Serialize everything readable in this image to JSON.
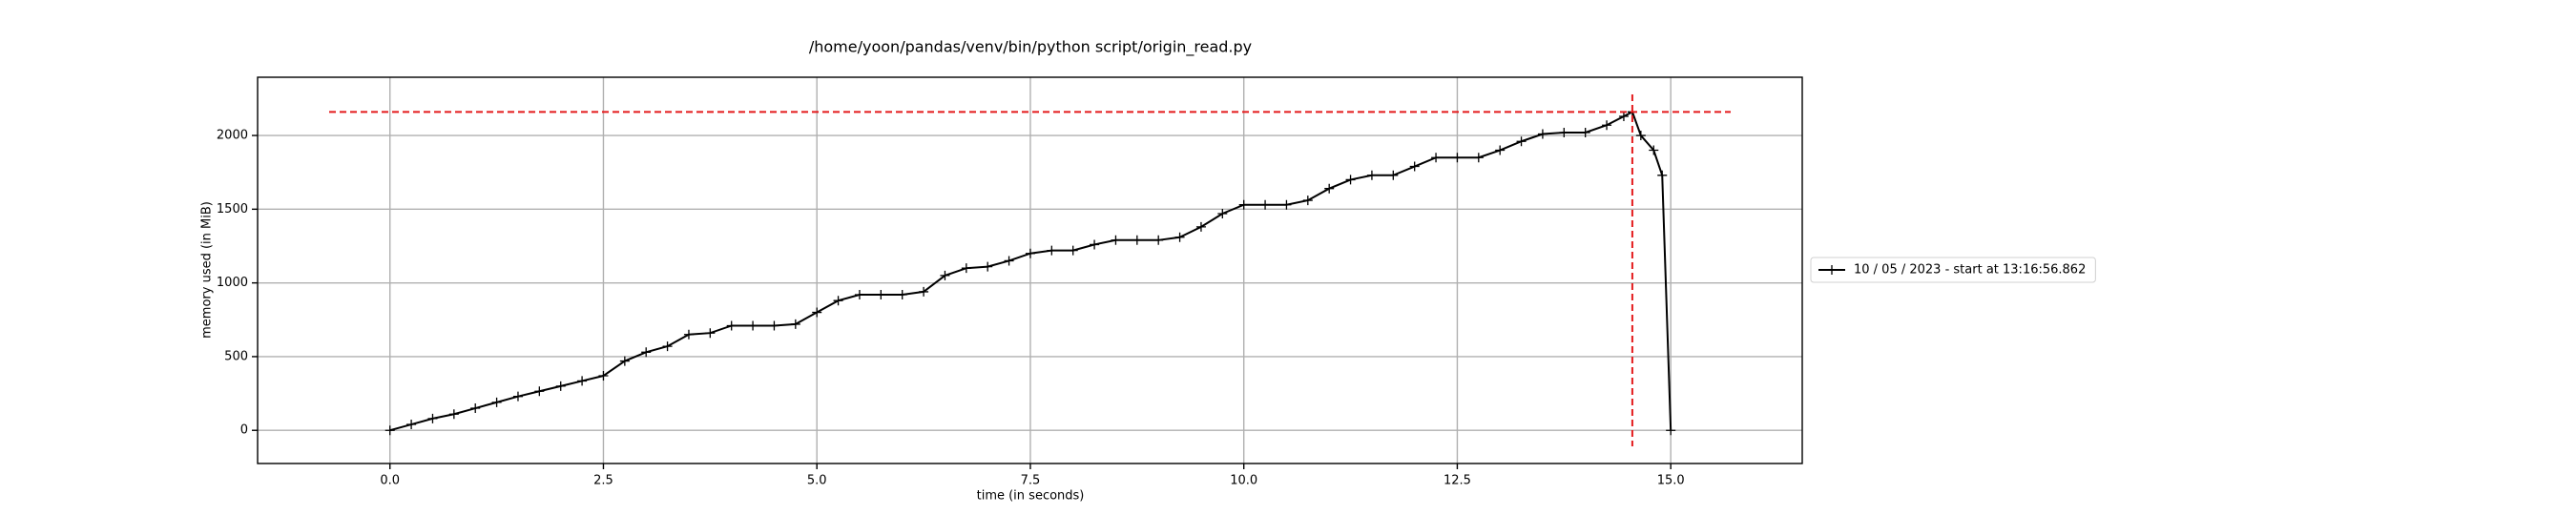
{
  "chart_data": {
    "type": "line",
    "title": "/home/yoon/pandas/venv/bin/python script/origin_read.py",
    "xlabel": "time (in seconds)",
    "ylabel": "memory used (in MiB)",
    "x": [
      0,
      0.25,
      0.5,
      0.75,
      1,
      1.25,
      1.5,
      1.75,
      2,
      2.25,
      2.5,
      2.75,
      3,
      3.25,
      3.5,
      3.75,
      4,
      4.25,
      4.5,
      4.75,
      5,
      5.25,
      5.5,
      5.75,
      6,
      6.25,
      6.5,
      6.75,
      7,
      7.25,
      7.5,
      7.75,
      8,
      8.25,
      8.5,
      8.75,
      9,
      9.25,
      9.5,
      9.75,
      10,
      10.25,
      10.5,
      10.75,
      11,
      11.25,
      11.5,
      11.75,
      12,
      12.25,
      12.5,
      12.75,
      13,
      13.25,
      13.5,
      13.75,
      14,
      14.25,
      14.45,
      14.55,
      14.65,
      14.8,
      14.9,
      15
    ],
    "series": [
      {
        "name": "10 / 05 / 2023 - start at 13:16:56.862",
        "color": "#000000",
        "values": [
          0,
          40,
          80,
          110,
          150,
          190,
          230,
          265,
          300,
          335,
          370,
          470,
          530,
          570,
          650,
          660,
          710,
          710,
          710,
          720,
          800,
          880,
          920,
          920,
          920,
          940,
          1050,
          1100,
          1110,
          1150,
          1200,
          1220,
          1220,
          1260,
          1290,
          1290,
          1290,
          1310,
          1380,
          1470,
          1530,
          1530,
          1530,
          1560,
          1640,
          1700,
          1730,
          1730,
          1790,
          1850,
          1850,
          1850,
          1900,
          1960,
          2010,
          2020,
          2020,
          2070,
          2130,
          2160,
          2000,
          1900,
          1730,
          0
        ]
      }
    ],
    "peak_color": "#e41a1c",
    "xlim": [
      -1.55,
      16.54
    ],
    "ylim": [
      -225,
      2395
    ],
    "xticks": [
      {
        "value": 0,
        "label": "0.0"
      },
      2.5,
      {
        "value": 5,
        "label": "5.0"
      },
      7.5,
      {
        "value": 10,
        "label": "10.0"
      },
      12.5,
      {
        "value": 15,
        "label": "15.0"
      }
    ],
    "yticks": [
      0,
      500,
      1000,
      1500,
      2000
    ],
    "grid": true,
    "legend": "right"
  }
}
